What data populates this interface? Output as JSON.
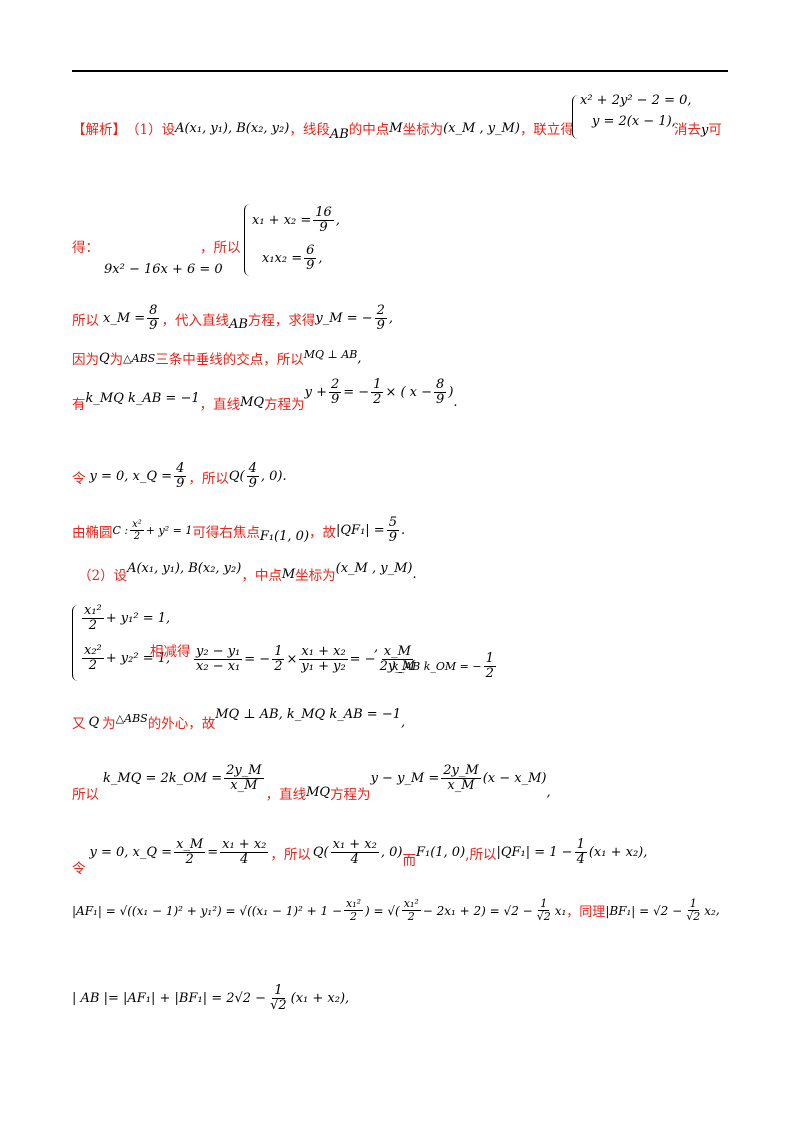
{
  "doc": {
    "l1_tag": "【解析】",
    "l1_a": "（1）设",
    "l1_m1": "A(x₁, y₁), B(x₂, y₂)",
    "l1_b": "，线段",
    "l1_m2": "AB",
    "l1_c": "的中点",
    "l1_m3": "M",
    "l1_d": "坐标为",
    "l1_m4": "(x_M , y_M)",
    "l1_e": "，联立得",
    "l1_sys1": "x² + 2y² − 2 = 0,",
    "l1_sys2": "y = 2(x − 1),",
    "l1_f": "消去",
    "l1_m5": "y",
    "l1_g": "可",
    "l2_a": "得：",
    "l2_eq": "9x² − 16x + 6 = 0",
    "l2_b": "，所以",
    "l2_s1_left": "x₁ + x₂ =",
    "l2_s1_num": "16",
    "l2_s1_den": "9",
    "l2_s2_left": "x₁x₂ =",
    "l2_s2_num": "6",
    "l2_s2_den": "9",
    "l3_a": "所以",
    "l3_m1_left": "x_M =",
    "l3_m1_num": "8",
    "l3_m1_den": "9",
    "l3_b": "，代入直线",
    "l3_m2": "AB",
    "l3_c": "方程，求得",
    "l3_m3_left": "y_M = −",
    "l3_m3_num": "2",
    "l3_m3_den": "9",
    "l4_a": "因为",
    "l4_m1": "Q",
    "l4_b": "为",
    "l4_m2": "△ABS",
    "l4_c": "三条中垂线的交点，所以",
    "l4_m3": "MQ ⊥ AB",
    "l5_a": "有",
    "l5_m1": "k_MQ k_AB = −1",
    "l5_b": "，直线",
    "l5_m2": "MQ",
    "l5_c": "方程为",
    "l5_eq_left": "y +",
    "l5_eq_num1": "2",
    "l5_eq_den1": "9",
    "l5_eq_mid": "= −",
    "l5_eq_num2": "1",
    "l5_eq_den2": "2",
    "l5_eq_x": "× ( x −",
    "l5_eq_num3": "8",
    "l5_eq_den3": "9",
    "l5_eq_end": ")",
    "l6_a": "令",
    "l6_m1": "y = 0, x_Q =",
    "l6_num": "4",
    "l6_den": "9",
    "l6_b": "，所以",
    "l6_m2": "Q(",
    "l6_num2": "4",
    "l6_den2": "9",
    "l6_m3": ", 0).",
    "l7_a": "由椭圆",
    "l7_m1": "C :",
    "l7_num": "x²",
    "l7_den": "2",
    "l7_m2": "+ y² = 1",
    "l7_b": "可得右焦点",
    "l7_m3": "F₁(1, 0)",
    "l7_c": "，故",
    "l7_m4": "|QF₁| =",
    "l7_num2": "5",
    "l7_den2": "9",
    "l8_a": "（2）设",
    "l8_m1": "A(x₁, y₁), B(x₂, y₂)",
    "l8_b": "，中点",
    "l8_m2": "M",
    "l8_c": "坐标为",
    "l8_m3": "(x_M , y_M)",
    "l9_s1_num": "x₁²",
    "l9_s1_den": "2",
    "l9_s1_right": "+ y₁² = 1,",
    "l9_s2_num": "x₂²",
    "l9_s2_den": "2",
    "l9_s2_right": "+ y₂² = 1,",
    "l9_a": "相减得",
    "l9_f1_num": "y₂ − y₁",
    "l9_f1_den": "x₂ − x₁",
    "l9_eq1": "= −",
    "l9_f2_num": "1",
    "l9_f2_den": "2",
    "l9_times": "×",
    "l9_f3_num": "x₁ + x₂",
    "l9_f3_den": "y₁ + y₂",
    "l9_eq2": "= −",
    "l9_f4_num": "x_M",
    "l9_f4_den": "2y_M",
    "l9_b": ",",
    "l9_m_k": "k_AB k_OM = −",
    "l9_f5_num": "1",
    "l9_f5_den": "2",
    "l10_a": "又",
    "l10_m1": "Q",
    "l10_b": "为",
    "l10_m2": "△ABS",
    "l10_c": "的外心，故",
    "l10_m3": "MQ ⊥ AB, k_MQ k_AB = −1",
    "l11_a": "所以",
    "l11_m1": "k_MQ = 2k_OM =",
    "l11_num": "2y_M",
    "l11_den": "x_M",
    "l11_b": "，直线",
    "l11_m2": "MQ",
    "l11_c": "方程为",
    "l11_m3": "y − y_M =",
    "l11_num2": "2y_M",
    "l11_den2": "x_M",
    "l11_m4": "(x − x_M)",
    "l12_a": "令",
    "l12_m1": "y = 0, x_Q =",
    "l12_num1": "x_M",
    "l12_den1": "2",
    "l12_eq": "=",
    "l12_num2": "x₁ + x₂",
    "l12_den2": "4",
    "l12_b": "，所以",
    "l12_m2": "Q(",
    "l12_num3": "x₁ + x₂",
    "l12_den3": "4",
    "l12_m3": ", 0)",
    "l12_c": "而",
    "l12_m4": "F₁(1, 0)",
    "l12_d": ",所以",
    "l12_m5": "|QF₁| = 1 −",
    "l12_num4": "1",
    "l12_den4": "4",
    "l12_m6": "(x₁ + x₂)",
    "l13_m1": "|AF₁| = √((x₁ − 1)² + y₁²) = √((x₁ − 1)² + 1 −",
    "l13_num1": "x₁²",
    "l13_den1": "2",
    "l13_m2": ") = √(",
    "l13_num2": "x₁²",
    "l13_den2": "2",
    "l13_m3": "− 2x₁ + 2) = √2 −",
    "l13_num3": "1",
    "l13_den3": "√2",
    "l13_m4": "x₁",
    "l13_a": "，同理",
    "l13_m5": "|BF₁| = √2 −",
    "l13_num4": "1",
    "l13_den4": "√2",
    "l13_m6": "x₂",
    "l14_m1": "| AB |= |AF₁| + |BF₁| = 2√2 −",
    "l14_num": "1",
    "l14_den": "√2",
    "l14_m2": "(x₁ + x₂)",
    "l14_end": ","
  }
}
